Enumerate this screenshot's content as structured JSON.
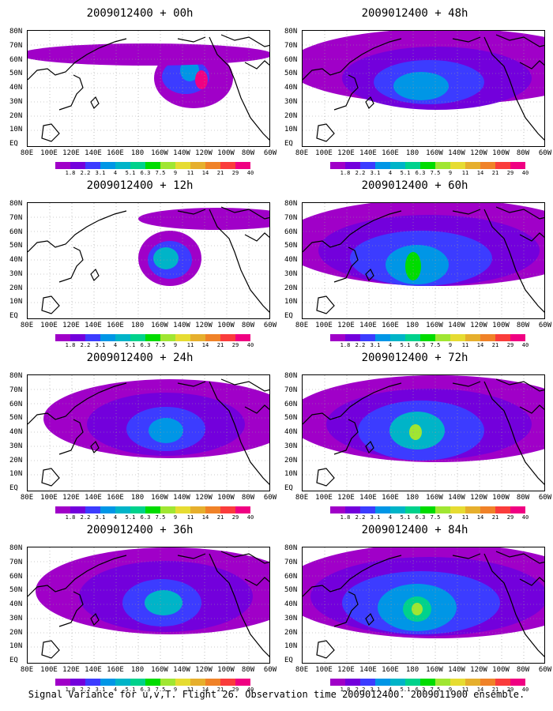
{
  "caption": "Signal Variance for u,v,T. Flight 26. Observation time 2009012400. 2009011900 ensemble.",
  "axes": {
    "y_labels": [
      "80N",
      "70N",
      "60N",
      "50N",
      "40N",
      "30N",
      "20N",
      "10N",
      "EQ"
    ],
    "x_labels": [
      "80E",
      "100E",
      "120E",
      "140E",
      "160E",
      "180",
      "160W",
      "140W",
      "120W",
      "100W",
      "80W",
      "60W"
    ]
  },
  "colorbar": {
    "ticks": [
      "1.8",
      "2.2",
      "3.1",
      "4",
      "5.1",
      "6.3",
      "7.5",
      "9",
      "11",
      "14",
      "21",
      "29",
      "40"
    ],
    "colors": [
      "#a000c8",
      "#7300dc",
      "#3c3cff",
      "#0096e6",
      "#00b4c8",
      "#00d28c",
      "#00dc00",
      "#a0e632",
      "#e6dc32",
      "#e6af2d",
      "#f08228",
      "#fa3c3c",
      "#f00082"
    ]
  },
  "panels": [
    {
      "title": "2009012400 + 00h"
    },
    {
      "title": "2009012400 + 48h"
    },
    {
      "title": "2009012400 + 12h"
    },
    {
      "title": "2009012400 + 60h"
    },
    {
      "title": "2009012400 + 24h"
    },
    {
      "title": "2009012400 + 72h"
    },
    {
      "title": "2009012400 + 36h"
    },
    {
      "title": "2009012400 + 84h"
    }
  ]
}
